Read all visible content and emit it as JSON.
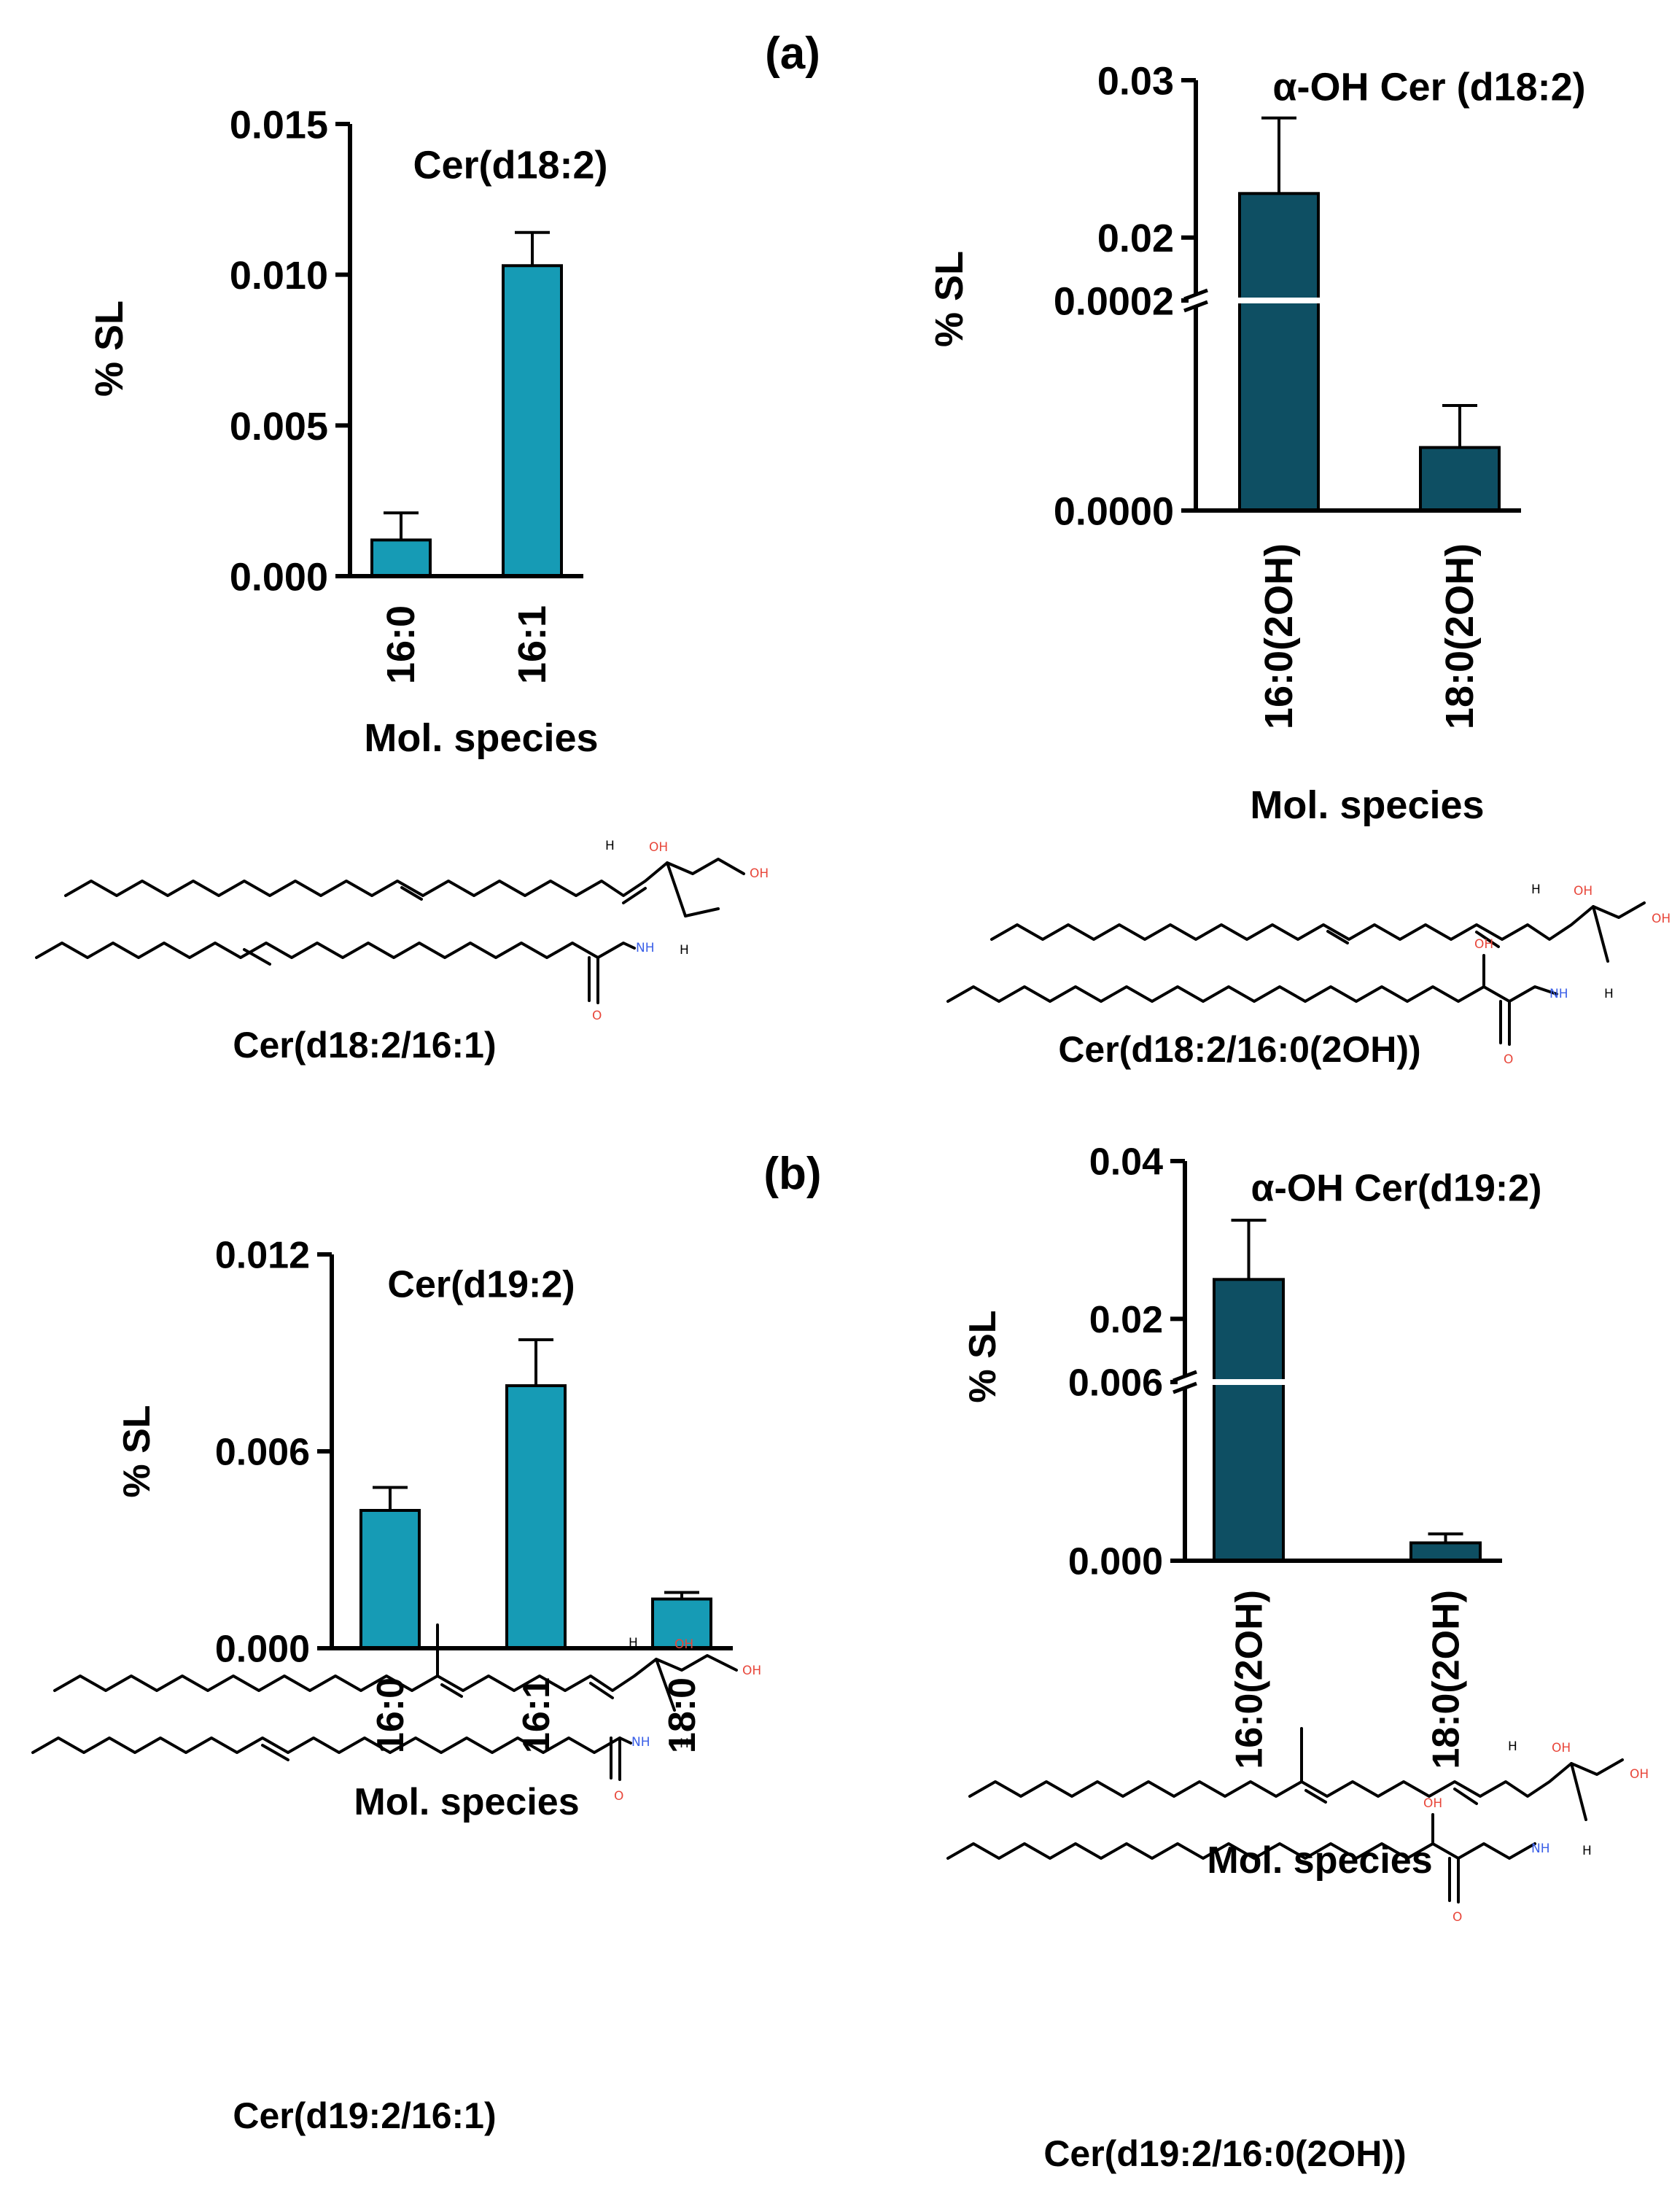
{
  "panel_labels": {
    "a": "(a)",
    "b": "(b)"
  },
  "colors": {
    "light_bar": "#169bb5",
    "dark_bar": "#0e4f63",
    "axis": "#000000"
  },
  "chart_data": [
    {
      "id": "c1",
      "type": "bar",
      "title": "Cer(d18:2)",
      "ylabel": "% SL",
      "xlabel": "Mol. species",
      "categories": [
        "16:0",
        "16:1"
      ],
      "values": [
        0.0012,
        0.0103
      ],
      "errors": [
        0.0009,
        0.0011
      ],
      "ylim": [
        0,
        0.015
      ],
      "yticks": [
        "0.000",
        "0.005",
        "0.010",
        "0.015"
      ],
      "color": "#169bb5"
    },
    {
      "id": "c2",
      "type": "bar",
      "title": "α-OH Cer (d18:2)",
      "ylabel": "% SL",
      "xlabel": "Mol. species",
      "categories": [
        "16:0(2OH)",
        "18:0(2OH)"
      ],
      "values": [
        0.0228,
        6e-05
      ],
      "errors": [
        0.0048,
        4e-05
      ],
      "axis_break": {
        "lower": [
          0,
          0.0002
        ],
        "upper": [
          0.016,
          0.03
        ]
      },
      "yticks_lower": [
        "0.0000",
        "0.0002"
      ],
      "yticks_upper": [
        "0.02",
        "0.03"
      ],
      "color": "#0e4f63"
    },
    {
      "id": "c3",
      "type": "bar",
      "title": "Cer(d19:2)",
      "ylabel": "% SL",
      "xlabel": "Mol. species",
      "categories": [
        "16:0",
        "16:1",
        "18:0"
      ],
      "values": [
        0.0042,
        0.008,
        0.0015
      ],
      "errors": [
        0.0007,
        0.0014,
        0.0002
      ],
      "ylim": [
        0,
        0.012
      ],
      "yticks": [
        "0.000",
        "0.006",
        "0.012"
      ],
      "color": "#169bb5"
    },
    {
      "id": "c4",
      "type": "bar",
      "title": "α-OH Cer(d19:2)",
      "ylabel": "% SL",
      "xlabel": "Mol. species",
      "categories": [
        "16:0(2OH)",
        "18:0(2OH)"
      ],
      "values": [
        0.025,
        0.0006
      ],
      "errors": [
        0.0075,
        0.0003
      ],
      "axis_break": {
        "lower": [
          0,
          0.006
        ],
        "upper": [
          0.012,
          0.04
        ]
      },
      "yticks_lower": [
        "0.000",
        "0.006"
      ],
      "yticks_upper": [
        "0.02",
        "0.04"
      ],
      "color": "#0e4f63"
    }
  ],
  "structures": [
    {
      "id": "s1",
      "name": "Cer(d18:2/16:1)",
      "atoms": {
        "oh1": "OH",
        "oh2": "OH",
        "nh": "NH",
        "h1": "H",
        "h2": "H",
        "o": "O"
      }
    },
    {
      "id": "s2",
      "name": "Cer(d18:2/16:0(2OH))",
      "atoms": {
        "oh1": "OH",
        "oh2": "OH",
        "oh3": "OH",
        "nh": "NH",
        "h1": "H",
        "h2": "H",
        "o": "O"
      }
    },
    {
      "id": "s3",
      "name": "Cer(d19:2/16:1)",
      "atoms": {
        "oh1": "OH",
        "oh2": "OH",
        "nh": "NH",
        "h1": "H",
        "h2": "H",
        "o": "O"
      }
    },
    {
      "id": "s4",
      "name": "Cer(d19:2/16:0(2OH))",
      "atoms": {
        "oh1": "OH",
        "oh2": "OH",
        "oh3": "OH",
        "nh": "NH",
        "h1": "H",
        "h2": "H",
        "o": "O"
      }
    }
  ]
}
